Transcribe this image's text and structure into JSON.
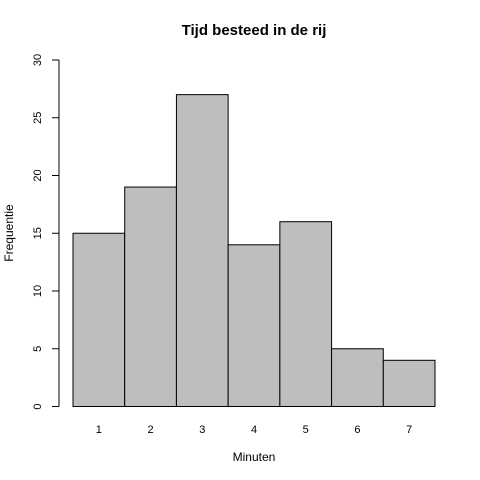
{
  "chart_data": {
    "type": "bar",
    "title": "Tijd besteed in de rij",
    "xlabel": "Minuten",
    "ylabel": "Frequentie",
    "categories": [
      "1",
      "2",
      "3",
      "4",
      "5",
      "6",
      "7"
    ],
    "values": [
      15,
      19,
      27,
      14,
      16,
      5,
      4
    ],
    "ylim": [
      0,
      30
    ],
    "yticks": [
      "0",
      "5",
      "10",
      "15",
      "20",
      "25",
      "30"
    ],
    "grid": false,
    "colors": {
      "bar_fill": "#bebebe",
      "bar_stroke": "#000000"
    }
  }
}
